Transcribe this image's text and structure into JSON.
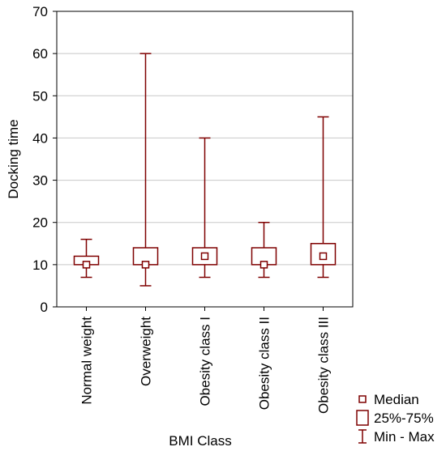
{
  "chart_data": {
    "type": "boxplot",
    "title": "",
    "xlabel": "BMI Class",
    "ylabel": "Docking time",
    "ylim": [
      0,
      70
    ],
    "yticks": [
      0,
      10,
      20,
      30,
      40,
      50,
      60,
      70
    ],
    "grid": "horizontal",
    "legend_position": "bottom-right",
    "colors": {
      "box": "#7f0000",
      "grid": "#c8c8c8",
      "axis": "#000000"
    },
    "categories": [
      "Normal weight",
      "Overweight",
      "Obesity class I",
      "Obesity class II",
      "Obesity class III"
    ],
    "series": [
      {
        "category": "Normal weight",
        "min": 7,
        "q1": 10,
        "median": 10,
        "q3": 12,
        "max": 16
      },
      {
        "category": "Overweight",
        "min": 5,
        "q1": 10,
        "median": 10,
        "q3": 14,
        "max": 60
      },
      {
        "category": "Obesity class I",
        "min": 7,
        "q1": 10,
        "median": 12,
        "q3": 14,
        "max": 40
      },
      {
        "category": "Obesity class II",
        "min": 7,
        "q1": 10,
        "median": 10,
        "q3": 14,
        "max": 20
      },
      {
        "category": "Obesity class III",
        "min": 7,
        "q1": 10,
        "median": 12,
        "q3": 15,
        "max": 45
      }
    ],
    "legend": [
      {
        "symbol": "median",
        "label": "Median"
      },
      {
        "symbol": "box",
        "label": "25%-75%"
      },
      {
        "symbol": "whisker",
        "label": "Min - Max"
      }
    ]
  }
}
